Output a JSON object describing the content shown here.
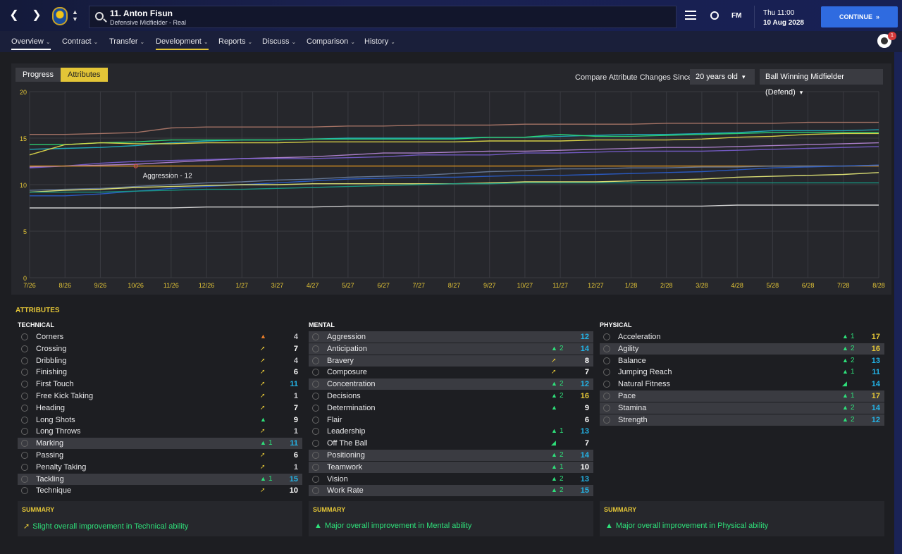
{
  "header": {
    "player_name": "11. Anton Fisun",
    "player_sub": "Defensive Midfielder - Real",
    "date_day": "Thu 11:00",
    "date_full": "10 Aug 2028",
    "continue_label": "CONTINUE",
    "fm_label": "FM",
    "notif_count": "1"
  },
  "nav": {
    "tabs": [
      "Overview",
      "Contract",
      "Transfer",
      "Development",
      "Reports",
      "Discuss",
      "Comparison",
      "History"
    ]
  },
  "chart_controls": {
    "progress_label": "Progress",
    "attributes_label": "Attributes",
    "compare_label": "Compare Attribute Changes Since",
    "since_value": "20 years old",
    "role_value": "Ball Winning Midfielder (Defend)"
  },
  "chart_data": {
    "type": "line",
    "x": [
      "7/26",
      "8/26",
      "9/26",
      "10/26",
      "11/26",
      "12/26",
      "1/27",
      "3/27",
      "4/27",
      "5/27",
      "6/27",
      "7/27",
      "8/27",
      "9/27",
      "10/27",
      "11/27",
      "12/27",
      "1/28",
      "2/28",
      "3/28",
      "4/28",
      "5/28",
      "6/28",
      "7/28",
      "8/28"
    ],
    "ylim": [
      0,
      20
    ],
    "yticks": [
      0,
      5,
      10,
      15,
      20
    ],
    "annotation": "Aggression - 12",
    "series": [
      {
        "color": "#b07a6a",
        "values": [
          15.4,
          15.4,
          15.5,
          15.6,
          16.1,
          16.2,
          16.2,
          16.2,
          16.2,
          16.3,
          16.3,
          16.4,
          16.4,
          16.4,
          16.5,
          16.5,
          16.5,
          16.5,
          16.6,
          16.6,
          16.6,
          16.6,
          16.7,
          16.7,
          16.7
        ]
      },
      {
        "color": "#1fb5c5",
        "values": [
          13.8,
          13.9,
          14.0,
          14.2,
          14.5,
          14.7,
          14.8,
          14.8,
          14.9,
          15.0,
          15.0,
          15.0,
          15.0,
          15.1,
          15.1,
          15.2,
          15.3,
          15.4,
          15.4,
          15.5,
          15.6,
          15.8,
          15.8,
          15.8,
          15.9
        ]
      },
      {
        "color": "#2ee07a",
        "values": [
          14.3,
          14.3,
          14.5,
          14.6,
          14.8,
          14.8,
          14.8,
          14.8,
          14.9,
          14.9,
          14.9,
          14.9,
          14.9,
          15.1,
          15.1,
          15.4,
          15.2,
          15.2,
          15.3,
          15.4,
          15.5,
          15.6,
          15.6,
          15.6,
          15.6
        ]
      },
      {
        "color": "#e8e04a",
        "values": [
          13.2,
          14.3,
          14.5,
          14.4,
          14.4,
          14.5,
          14.5,
          14.5,
          14.6,
          14.6,
          14.6,
          14.6,
          14.6,
          14.7,
          14.7,
          14.7,
          14.8,
          14.8,
          14.8,
          14.9,
          15.1,
          15.2,
          15.4,
          15.5,
          15.5
        ]
      },
      {
        "color": "#b888d8",
        "values": [
          11.9,
          12.0,
          12.1,
          12.2,
          12.4,
          12.6,
          12.8,
          12.9,
          13.0,
          13.2,
          13.4,
          13.4,
          13.5,
          13.6,
          13.6,
          13.7,
          13.8,
          13.9,
          14.0,
          14.0,
          14.1,
          14.2,
          14.3,
          14.4,
          14.5
        ]
      },
      {
        "color": "#7a5fd0",
        "values": [
          11.8,
          12.0,
          12.3,
          12.5,
          12.6,
          12.7,
          12.8,
          12.8,
          12.8,
          12.9,
          13.0,
          13.2,
          13.2,
          13.2,
          13.4,
          13.4,
          13.5,
          13.6,
          13.6,
          13.6,
          13.7,
          13.8,
          13.9,
          14.0,
          14.1
        ]
      },
      {
        "color": "#f0a020",
        "values": [
          12.0,
          12.0,
          12.0,
          12.0,
          12.0,
          12.0,
          12.0,
          12.0,
          12.0,
          12.0,
          12.0,
          12.0,
          12.0,
          12.0,
          12.0,
          12.0,
          12.0,
          12.0,
          12.0,
          12.0,
          12.0,
          12.0,
          12.0,
          12.0,
          12.0
        ]
      },
      {
        "color": "#6b7fa0",
        "values": [
          9.4,
          9.5,
          9.6,
          9.8,
          10.0,
          10.2,
          10.3,
          10.5,
          10.6,
          10.8,
          10.9,
          11.0,
          11.2,
          11.4,
          11.5,
          11.7,
          11.7,
          11.8,
          11.8,
          11.9,
          11.9,
          12.0,
          12.0,
          12.0,
          12.1
        ]
      },
      {
        "color": "#2a5fd0",
        "values": [
          8.8,
          8.8,
          9.0,
          9.3,
          9.6,
          9.8,
          10.0,
          10.2,
          10.4,
          10.6,
          10.7,
          10.8,
          10.8,
          10.9,
          11.0,
          11.0,
          11.1,
          11.2,
          11.3,
          11.4,
          11.6,
          11.8,
          11.9,
          12.0,
          12.1
        ]
      },
      {
        "color": "#ecf07a",
        "values": [
          9.2,
          9.4,
          9.5,
          9.7,
          9.8,
          9.9,
          10.0,
          10.0,
          10.1,
          10.1,
          10.1,
          10.1,
          10.1,
          10.2,
          10.3,
          10.3,
          10.3,
          10.4,
          10.5,
          10.6,
          10.8,
          10.9,
          11.0,
          11.1,
          11.3
        ]
      },
      {
        "color": "#18a08a",
        "values": [
          9.2,
          9.2,
          9.2,
          9.3,
          9.4,
          9.5,
          9.5,
          9.6,
          9.7,
          9.8,
          9.9,
          10.0,
          10.1,
          10.1,
          10.2,
          10.2,
          10.2,
          10.2,
          10.2,
          10.2,
          10.2,
          10.2,
          10.2,
          10.2,
          10.2
        ]
      },
      {
        "color": "#e0e0e0",
        "values": [
          7.5,
          7.5,
          7.5,
          7.5,
          7.5,
          7.6,
          7.6,
          7.6,
          7.6,
          7.7,
          7.7,
          7.7,
          7.7,
          7.7,
          7.7,
          7.7,
          7.7,
          7.7,
          7.7,
          7.7,
          7.8,
          7.8,
          7.8,
          7.8,
          7.8
        ]
      }
    ]
  },
  "attributes": {
    "title": "ATTRIBUTES",
    "technical_head": "TECHNICAL",
    "mental_head": "MENTAL",
    "physical_head": "PHYSICAL",
    "technical": [
      {
        "name": "Corners",
        "arrow": "▲",
        "arrow_color": "#e67c2a",
        "delta": "",
        "value": "4",
        "value_color": "#c8c8cc",
        "hl": false
      },
      {
        "name": "Crossing",
        "arrow": "➚",
        "arrow_color": "#e3c537",
        "delta": "",
        "value": "7",
        "value_color": "#ffffff",
        "hl": false
      },
      {
        "name": "Dribbling",
        "arrow": "➚",
        "arrow_color": "#e3c537",
        "delta": "",
        "value": "4",
        "value_color": "#c8c8cc",
        "hl": false
      },
      {
        "name": "Finishing",
        "arrow": "➚",
        "arrow_color": "#e3c537",
        "delta": "",
        "value": "6",
        "value_color": "#ffffff",
        "hl": false
      },
      {
        "name": "First Touch",
        "arrow": "➚",
        "arrow_color": "#e3c537",
        "delta": "",
        "value": "11",
        "value_color": "#23b3e6",
        "hl": false
      },
      {
        "name": "Free Kick Taking",
        "arrow": "➚",
        "arrow_color": "#e3c537",
        "delta": "",
        "value": "1",
        "value_color": "#c8c8cc",
        "hl": false
      },
      {
        "name": "Heading",
        "arrow": "➚",
        "arrow_color": "#e3c537",
        "delta": "",
        "value": "7",
        "value_color": "#ffffff",
        "hl": false
      },
      {
        "name": "Long Shots",
        "arrow": "▲",
        "arrow_color": "#2ee07a",
        "delta": "",
        "value": "9",
        "value_color": "#ffffff",
        "hl": false
      },
      {
        "name": "Long Throws",
        "arrow": "➚",
        "arrow_color": "#e3c537",
        "delta": "",
        "value": "1",
        "value_color": "#c8c8cc",
        "hl": false
      },
      {
        "name": "Marking",
        "arrow": "▲",
        "arrow_color": "#2ee07a",
        "delta": "1",
        "value": "11",
        "value_color": "#23b3e6",
        "hl": true
      },
      {
        "name": "Passing",
        "arrow": "➚",
        "arrow_color": "#e3c537",
        "delta": "",
        "value": "6",
        "value_color": "#ffffff",
        "hl": false
      },
      {
        "name": "Penalty Taking",
        "arrow": "➚",
        "arrow_color": "#e3c537",
        "delta": "",
        "value": "1",
        "value_color": "#c8c8cc",
        "hl": false
      },
      {
        "name": "Tackling",
        "arrow": "▲",
        "arrow_color": "#2ee07a",
        "delta": "1",
        "value": "15",
        "value_color": "#23b3e6",
        "hl": true
      },
      {
        "name": "Technique",
        "arrow": "➚",
        "arrow_color": "#e3c537",
        "delta": "",
        "value": "10",
        "value_color": "#ffffff",
        "hl": false
      }
    ],
    "mental": [
      {
        "name": "Aggression",
        "arrow": "",
        "arrow_color": "#2ee07a",
        "delta": "",
        "value": "12",
        "value_color": "#23b3e6",
        "hl": true
      },
      {
        "name": "Anticipation",
        "arrow": "▲",
        "arrow_color": "#2ee07a",
        "delta": "2",
        "value": "14",
        "value_color": "#23b3e6",
        "hl": true
      },
      {
        "name": "Bravery",
        "arrow": "➚",
        "arrow_color": "#e3c537",
        "delta": "",
        "value": "8",
        "value_color": "#ffffff",
        "hl": true
      },
      {
        "name": "Composure",
        "arrow": "➚",
        "arrow_color": "#e3c537",
        "delta": "",
        "value": "7",
        "value_color": "#ffffff",
        "hl": false
      },
      {
        "name": "Concentration",
        "arrow": "▲",
        "arrow_color": "#2ee07a",
        "delta": "2",
        "value": "12",
        "value_color": "#23b3e6",
        "hl": true
      },
      {
        "name": "Decisions",
        "arrow": "▲",
        "arrow_color": "#2ee07a",
        "delta": "2",
        "value": "16",
        "value_color": "#e3c537",
        "hl": false
      },
      {
        "name": "Determination",
        "arrow": "▲",
        "arrow_color": "#2ee07a",
        "delta": "",
        "value": "9",
        "value_color": "#ffffff",
        "hl": false
      },
      {
        "name": "Flair",
        "arrow": "",
        "arrow_color": "#2ee07a",
        "delta": "",
        "value": "6",
        "value_color": "#ffffff",
        "hl": false
      },
      {
        "name": "Leadership",
        "arrow": "▲",
        "arrow_color": "#2ee07a",
        "delta": "1",
        "value": "13",
        "value_color": "#23b3e6",
        "hl": false
      },
      {
        "name": "Off The Ball",
        "arrow": "◢",
        "arrow_color": "#2ee07a",
        "delta": "",
        "value": "7",
        "value_color": "#ffffff",
        "hl": false
      },
      {
        "name": "Positioning",
        "arrow": "▲",
        "arrow_color": "#2ee07a",
        "delta": "2",
        "value": "14",
        "value_color": "#23b3e6",
        "hl": true
      },
      {
        "name": "Teamwork",
        "arrow": "▲",
        "arrow_color": "#2ee07a",
        "delta": "1",
        "value": "10",
        "value_color": "#ffffff",
        "hl": true
      },
      {
        "name": "Vision",
        "arrow": "▲",
        "arrow_color": "#2ee07a",
        "delta": "2",
        "value": "13",
        "value_color": "#23b3e6",
        "hl": false
      },
      {
        "name": "Work Rate",
        "arrow": "▲",
        "arrow_color": "#2ee07a",
        "delta": "2",
        "value": "15",
        "value_color": "#23b3e6",
        "hl": true
      }
    ],
    "physical": [
      {
        "name": "Acceleration",
        "arrow": "▲",
        "arrow_color": "#2ee07a",
        "delta": "1",
        "value": "17",
        "value_color": "#e3c537",
        "hl": false
      },
      {
        "name": "Agility",
        "arrow": "▲",
        "arrow_color": "#2ee07a",
        "delta": "2",
        "value": "16",
        "value_color": "#e3c537",
        "hl": true
      },
      {
        "name": "Balance",
        "arrow": "▲",
        "arrow_color": "#2ee07a",
        "delta": "2",
        "value": "13",
        "value_color": "#23b3e6",
        "hl": false
      },
      {
        "name": "Jumping Reach",
        "arrow": "▲",
        "arrow_color": "#2ee07a",
        "delta": "1",
        "value": "11",
        "value_color": "#23b3e6",
        "hl": false
      },
      {
        "name": "Natural Fitness",
        "arrow": "◢",
        "arrow_color": "#2ee07a",
        "delta": "",
        "value": "14",
        "value_color": "#23b3e6",
        "hl": false
      },
      {
        "name": "Pace",
        "arrow": "▲",
        "arrow_color": "#2ee07a",
        "delta": "1",
        "value": "17",
        "value_color": "#e3c537",
        "hl": true
      },
      {
        "name": "Stamina",
        "arrow": "▲",
        "arrow_color": "#2ee07a",
        "delta": "2",
        "value": "14",
        "value_color": "#23b3e6",
        "hl": true
      },
      {
        "name": "Strength",
        "arrow": "▲",
        "arrow_color": "#2ee07a",
        "delta": "2",
        "value": "12",
        "value_color": "#23b3e6",
        "hl": true
      }
    ]
  },
  "summaries": {
    "label": "SUMMARY",
    "technical": "Slight overall improvement in Technical ability",
    "technical_arrow": "➚",
    "mental": "Major overall improvement in Mental ability",
    "mental_arrow": "▲",
    "physical": "Major overall improvement in Physical ability",
    "physical_arrow": "▲"
  }
}
